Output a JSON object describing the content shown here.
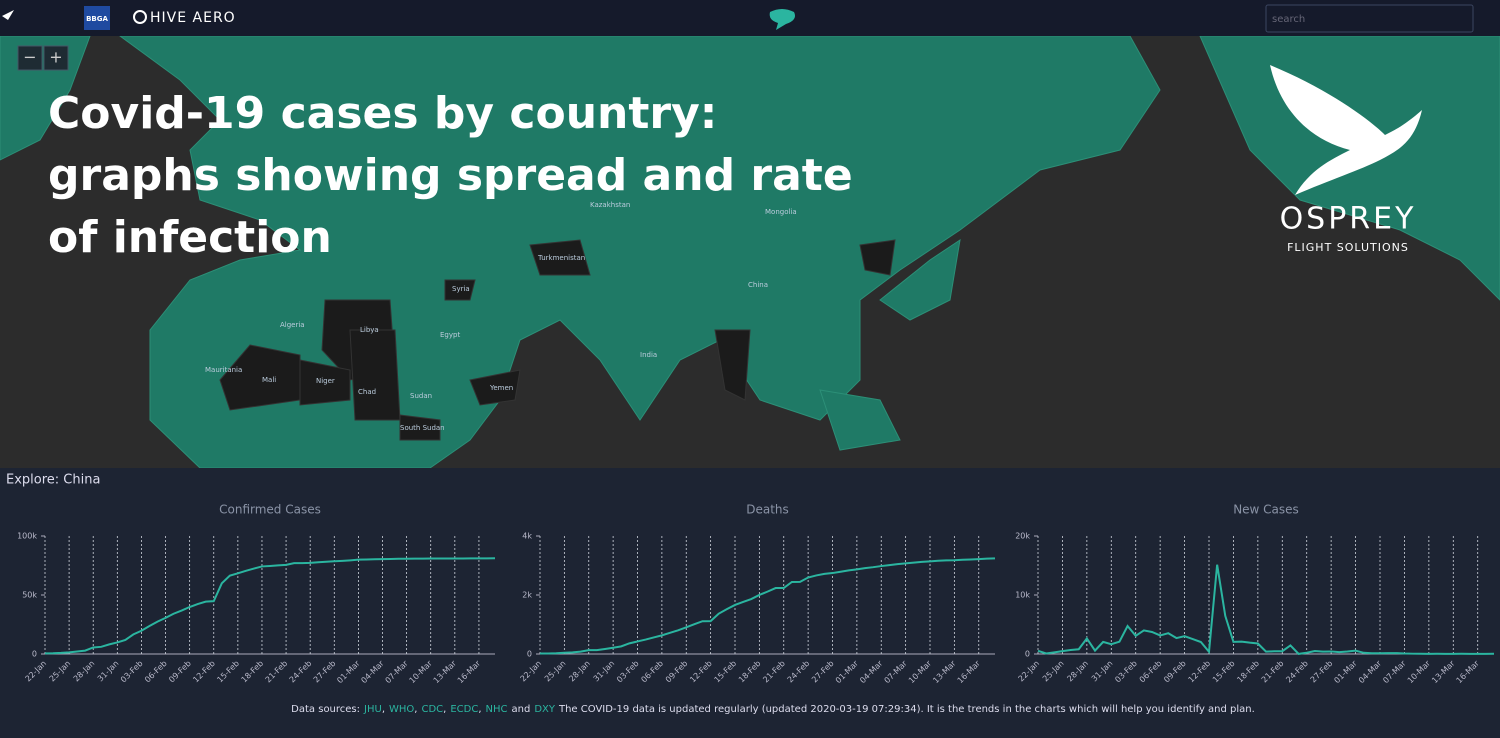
{
  "header": {
    "brand": "BBGA",
    "app": "HIVE AERO",
    "search_placeholder": "search"
  },
  "map": {
    "zoom_out": "−",
    "zoom_in": "+",
    "labels": [
      "Libya",
      "Niger",
      "Chad",
      "Mali",
      "Yemen",
      "Syria",
      "Turkmenistan",
      "China",
      "Algeria",
      "Egypt",
      "India",
      "Kazakhstan",
      "Mongolia",
      "South Sudan",
      "Mauritania",
      "Sudan"
    ]
  },
  "headline": {
    "lines": [
      "Covid-19 cases by country:",
      "graphs showing spread and rate",
      "of infection"
    ]
  },
  "logo": {
    "name": "OSPREY",
    "tagline": "FLIGHT SOLUTIONS"
  },
  "explore": "Explore: China",
  "chart_data": [
    {
      "type": "line",
      "title": "Confirmed Cases",
      "color": "#2bb5a0",
      "grid": "x",
      "categories": [
        "22-Jan",
        null,
        null,
        "25-Jan",
        null,
        null,
        "28-Jan",
        null,
        null,
        "31-Jan",
        null,
        null,
        "03-Feb",
        null,
        null,
        "06-Feb",
        null,
        null,
        "09-Feb",
        null,
        null,
        "12-Feb",
        null,
        null,
        "15-Feb",
        null,
        null,
        "18-Feb",
        null,
        null,
        "21-Feb",
        null,
        null,
        "24-Feb",
        null,
        null,
        "27-Feb",
        null,
        null,
        "01-Mar",
        null,
        null,
        "04-Mar",
        null,
        null,
        "07-Mar",
        null,
        null,
        "10-Mar",
        null,
        null,
        "13-Mar",
        null,
        null,
        "16-Mar",
        null,
        null
      ],
      "values": [
        548,
        643,
        920,
        1406,
        2075,
        2877,
        5509,
        6087,
        8141,
        9802,
        11891,
        16630,
        19716,
        23707,
        27440,
        30587,
        34110,
        36814,
        39829,
        42354,
        44386,
        44759,
        59895,
        66358,
        68413,
        70513,
        72434,
        74211,
        74619,
        75077,
        75550,
        77001,
        77022,
        77241,
        77754,
        78166,
        78600,
        78928,
        79356,
        79932,
        80136,
        80261,
        80386,
        80537,
        80690,
        80770,
        80823,
        80860,
        80887,
        80921,
        80932,
        80945,
        80977,
        81003,
        81033,
        81058,
        81102
      ],
      "ylim": [
        0,
        100000
      ],
      "yticks": [
        0,
        {
          "value": 50000,
          "label": "50k"
        },
        {
          "value": 100000,
          "label": "100k"
        }
      ]
    },
    {
      "type": "line",
      "title": "Deaths",
      "color": "#2bb5a0",
      "grid": "x",
      "categories": [
        "22-Jan",
        null,
        null,
        "25-Jan",
        null,
        null,
        "28-Jan",
        null,
        null,
        "31-Jan",
        null,
        null,
        "03-Feb",
        null,
        null,
        "06-Feb",
        null,
        null,
        "09-Feb",
        null,
        null,
        "12-Feb",
        null,
        null,
        "15-Feb",
        null,
        null,
        "18-Feb",
        null,
        null,
        "21-Feb",
        null,
        null,
        "24-Feb",
        null,
        null,
        "27-Feb",
        null,
        null,
        "01-Mar",
        null,
        null,
        "04-Mar",
        null,
        null,
        "07-Mar",
        null,
        null,
        "10-Mar",
        null,
        null,
        "13-Mar",
        null,
        null,
        "16-Mar",
        null,
        null
      ],
      "values": [
        17,
        18,
        26,
        42,
        56,
        82,
        131,
        133,
        171,
        213,
        259,
        361,
        425,
        490,
        562,
        632,
        717,
        804,
        904,
        1011,
        1111,
        1116,
        1368,
        1520,
        1662,
        1765,
        1863,
        2002,
        2114,
        2236,
        2236,
        2441,
        2443,
        2593,
        2663,
        2715,
        2744,
        2788,
        2835,
        2870,
        2912,
        2943,
        2981,
        3013,
        3045,
        3073,
        3099,
        3123,
        3140,
        3162,
        3173,
        3180,
        3194,
        3204,
        3218,
        3231,
        3242
      ],
      "ylim": [
        0,
        4000
      ],
      "yticks": [
        0,
        {
          "value": 2000,
          "label": "2k"
        },
        {
          "value": 4000,
          "label": "4k"
        }
      ]
    },
    {
      "type": "line",
      "title": "New Cases",
      "color": "#2bb5a0",
      "grid": "x",
      "categories": [
        "22-Jan",
        null,
        null,
        "25-Jan",
        null,
        null,
        "28-Jan",
        null,
        null,
        "31-Jan",
        null,
        null,
        "03-Feb",
        null,
        null,
        "06-Feb",
        null,
        null,
        "09-Feb",
        null,
        null,
        "12-Feb",
        null,
        null,
        "15-Feb",
        null,
        null,
        "18-Feb",
        null,
        null,
        "21-Feb",
        null,
        null,
        "24-Feb",
        null,
        null,
        "27-Feb",
        null,
        null,
        "01-Mar",
        null,
        null,
        "04-Mar",
        null,
        null,
        "07-Mar",
        null,
        null,
        "10-Mar",
        null,
        null,
        "13-Mar",
        null,
        null,
        "16-Mar",
        null,
        null
      ],
      "values": [
        548,
        95,
        277,
        486,
        669,
        802,
        2632,
        578,
        2054,
        1661,
        2089,
        4739,
        3086,
        3991,
        3733,
        3147,
        3523,
        2704,
        3015,
        2525,
        2032,
        373,
        15136,
        6463,
        2055,
        2100,
        1921,
        1777,
        408,
        458,
        473,
        1451,
        21,
        219,
        513,
        412,
        434,
        328,
        428,
        576,
        204,
        125,
        125,
        151,
        153,
        80,
        53,
        37,
        27,
        34,
        11,
        13,
        32,
        26,
        30,
        25,
        44
      ],
      "ylim": [
        0,
        20000
      ],
      "yticks": [
        0,
        {
          "value": 10000,
          "label": "10k"
        },
        {
          "value": 20000,
          "label": "20k"
        }
      ]
    }
  ],
  "footer": {
    "parts": [
      {
        "text": "Data sources:"
      },
      {
        "text": "JHU",
        "link": true
      },
      {
        "text": ","
      },
      {
        "text": "WHO",
        "link": true
      },
      {
        "text": ","
      },
      {
        "text": "CDC",
        "link": true
      },
      {
        "text": ","
      },
      {
        "text": "ECDC",
        "link": true
      },
      {
        "text": ","
      },
      {
        "text": "NHC",
        "link": true
      },
      {
        "text": "and"
      },
      {
        "text": "DXY",
        "link": true
      },
      {
        "text": "The COVID-19 data is updated regularly (updated 2020-03-19 07:29:34). It is the trends in the charts which will help you identify and plan."
      }
    ]
  }
}
